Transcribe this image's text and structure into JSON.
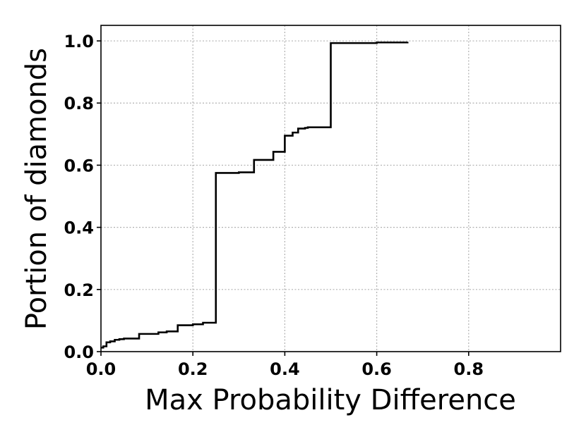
{
  "chart_data": {
    "type": "line",
    "step": "post",
    "title": "",
    "xlabel": "Max Probability Difference",
    "ylabel": "Portion of diamonds",
    "xlim": [
      0.0,
      1.0
    ],
    "ylim": [
      0.0,
      1.05
    ],
    "xticks": [
      0.0,
      0.2,
      0.4,
      0.6,
      0.8
    ],
    "xtick_labels": [
      "0.0",
      "0.2",
      "0.4",
      "0.6",
      "0.8"
    ],
    "yticks": [
      0.0,
      0.2,
      0.4,
      0.6,
      0.8,
      1.0
    ],
    "ytick_labels": [
      "0.0",
      "0.2",
      "0.4",
      "0.6",
      "0.8",
      "1.0"
    ],
    "grid": true,
    "series": [
      {
        "color": "#000000",
        "x": [
          0.0,
          0.005,
          0.012,
          0.02,
          0.03,
          0.04,
          0.05,
          0.083,
          0.125,
          0.143,
          0.167,
          0.2,
          0.222,
          0.25,
          0.3,
          0.333,
          0.375,
          0.4,
          0.417,
          0.429,
          0.444,
          0.45,
          0.5,
          0.6,
          0.667
        ],
        "y": [
          0.013,
          0.017,
          0.03,
          0.033,
          0.038,
          0.04,
          0.042,
          0.057,
          0.062,
          0.065,
          0.085,
          0.088,
          0.093,
          0.575,
          0.577,
          0.617,
          0.643,
          0.695,
          0.705,
          0.718,
          0.72,
          0.722,
          0.993,
          0.995,
          0.997
        ]
      }
    ]
  }
}
